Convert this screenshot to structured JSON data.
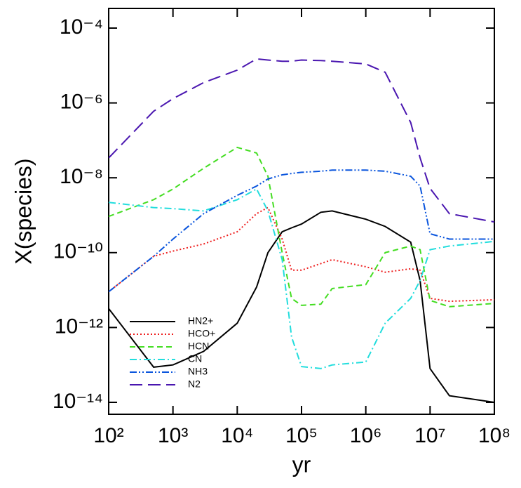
{
  "chart_data": {
    "type": "line",
    "xlabel": "yr",
    "ylabel": "X(species)",
    "xscale": "log",
    "yscale": "log",
    "xlim": [
      100,
      100000000
    ],
    "ylim": [
      4.8e-15,
      0.000335
    ],
    "xticks": [
      {
        "value": 100,
        "label": "10²"
      },
      {
        "value": 1000,
        "label": "10³"
      },
      {
        "value": 10000,
        "label": "10⁴"
      },
      {
        "value": 100000,
        "label": "10⁵"
      },
      {
        "value": 1000000,
        "label": "10⁶"
      },
      {
        "value": 10000000,
        "label": "10⁷"
      },
      {
        "value": 100000000,
        "label": "10⁸"
      }
    ],
    "yticks": [
      {
        "value": 1e-14,
        "label": "10⁻¹⁴"
      },
      {
        "value": 1e-12,
        "label": "10⁻¹²"
      },
      {
        "value": 1e-10,
        "label": "10⁻¹⁰"
      },
      {
        "value": 1e-08,
        "label": "10⁻⁸"
      },
      {
        "value": 1e-06,
        "label": "10⁻⁶"
      },
      {
        "value": 0.0001,
        "label": "10⁻⁴"
      }
    ],
    "legend": "lower left",
    "x": [
      100,
      500,
      1000,
      3000,
      10000,
      20000,
      30000,
      50000,
      70000,
      100000,
      200000,
      300000,
      1000000,
      2000000,
      5000000,
      7000000,
      10000000,
      20000000,
      100000000
    ],
    "series": [
      {
        "name": "HN2+",
        "color": "#000000",
        "linestyle": "solid",
        "values": [
          3.2e-12,
          8.7e-14,
          1e-13,
          2.3e-13,
          1.3e-12,
          1.2e-11,
          1e-10,
          3.6e-10,
          4.6e-10,
          5.8e-10,
          1.2e-09,
          1.3e-09,
          7.8e-10,
          5e-10,
          1.9e-10,
          1.8e-11,
          8e-14,
          1.5e-14,
          1e-14
        ]
      },
      {
        "name": "HCO+",
        "color": "#ee1c1c",
        "linestyle": "dotted",
        "values": [
          9e-12,
          8e-11,
          1.1e-10,
          1.7e-10,
          3.6e-10,
          1.1e-09,
          1.6e-09,
          2.3e-10,
          3.4e-11,
          3.4e-11,
          5.1e-11,
          6.5e-11,
          4.2e-11,
          3e-11,
          3.7e-11,
          3.4e-11,
          6e-12,
          5e-12,
          5.5e-12
        ]
      },
      {
        "name": "HCN",
        "color": "#44dd22",
        "linestyle": "dashed",
        "values": [
          9.3e-10,
          2.6e-09,
          5e-09,
          1.8e-08,
          6.5e-08,
          4.6e-08,
          1.1e-08,
          1e-10,
          6e-12,
          3.9e-12,
          4.2e-12,
          1.1e-11,
          1.4e-11,
          1e-10,
          1.5e-10,
          1.2e-10,
          5.3e-12,
          3.6e-12,
          4.4e-12
        ]
      },
      {
        "name": "CN",
        "color": "#22dddd",
        "linestyle": "dashdot",
        "values": [
          2.2e-09,
          1.6e-09,
          1.5e-09,
          1.3e-09,
          2.6e-09,
          5e-09,
          1.3e-09,
          6.5e-11,
          5.6e-13,
          9e-14,
          8e-14,
          1e-13,
          1.2e-13,
          1.3e-12,
          6e-12,
          1.8e-11,
          1.2e-10,
          1.5e-10,
          2e-10
        ]
      },
      {
        "name": "NH3",
        "color": "#0a55dd",
        "linestyle": "dashdotdot",
        "values": [
          9e-12,
          8e-11,
          2.3e-10,
          1.1e-09,
          3.4e-09,
          6e-09,
          9.3e-09,
          1.2e-08,
          1.3e-08,
          1.4e-08,
          1.5e-08,
          1.6e-08,
          1.6e-08,
          1.5e-08,
          1.1e-08,
          6e-09,
          3.2e-10,
          2.3e-10,
          2.3e-10
        ]
      },
      {
        "name": "N2",
        "color": "#4a16b0",
        "linestyle": "longdash",
        "values": [
          3.4e-08,
          6e-07,
          1.3e-06,
          3.5e-06,
          7.5e-06,
          1.5e-05,
          1.4e-05,
          1.3e-05,
          1.3e-05,
          1.4e-05,
          1.35e-05,
          1.3e-05,
          1.1e-05,
          6.6e-06,
          3e-07,
          3.4e-08,
          5.2e-09,
          1.1e-09,
          6.6e-10
        ]
      }
    ]
  }
}
